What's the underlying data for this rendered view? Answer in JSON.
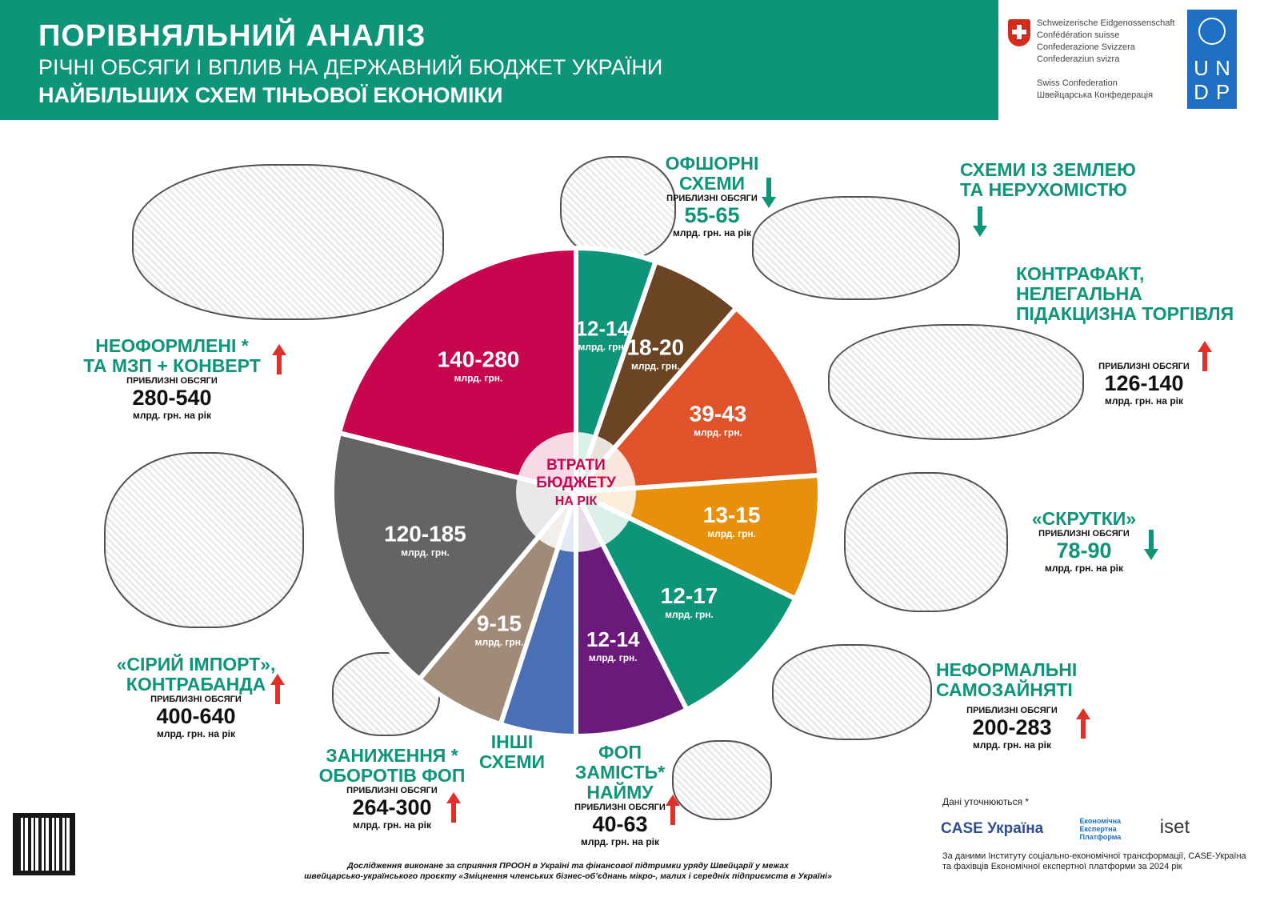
{
  "header": {
    "title": "ПОРІВНЯЛЬНИЙ АНАЛІЗ",
    "subtitle": "РІЧНІ ОБСЯГИ І ВПЛИВ НА ДЕРЖАВНИЙ БЮДЖЕТ УКРАЇНИ",
    "subtitle2": "НАЙБІЛЬШИХ СХЕМ ТІНЬОВОЇ ЕКОНОМІКИ"
  },
  "partners": {
    "swiss": [
      "Schweizerische Eidgenossenschaft",
      "Confédération suisse",
      "Confederazione Svizzera",
      "Confederaziun svizra",
      "",
      "Swiss Confederation",
      "Швейцарська Конфедерація"
    ],
    "undp": [
      "U",
      "N",
      "D",
      "P"
    ]
  },
  "chart_data": {
    "type": "pie",
    "center_label": [
      "ВТРАТИ",
      "БЮДЖЕТУ",
      "НА РІК"
    ],
    "unit": "млрд. грн.",
    "slices": [
      {
        "label": "12-14",
        "share_percent": 5.3,
        "color": "#0e9479"
      },
      {
        "label": "18-20",
        "share_percent": 6.1,
        "color": "#6b4423"
      },
      {
        "label": "39-43",
        "share_percent": 12.5,
        "color": "#e0532a"
      },
      {
        "label": "13-15",
        "share_percent": 8.3,
        "color": "#e8900c"
      },
      {
        "label": "12-17",
        "share_percent": 10.3,
        "color": "#0e9479"
      },
      {
        "label": "12-14",
        "share_percent": 7.5,
        "color": "#6a1a7a"
      },
      {
        "label": "",
        "share_percent": 5.0,
        "color": "#4a6fb5"
      },
      {
        "label": "9-15",
        "share_percent": 6.1,
        "color": "#a08a78"
      },
      {
        "label": "120-185",
        "share_percent": 17.8,
        "color": "#646464"
      },
      {
        "label": "140-280",
        "share_percent": 21.1,
        "color": "#c8064f"
      }
    ]
  },
  "schemes": {
    "offshore": {
      "title": "ОФШОРНІ СХЕМИ",
      "note": "ПРИБЛИЗНІ ОБСЯГИ",
      "value": "55-65",
      "unit": "млрд. грн. на рік",
      "trend": "down"
    },
    "land": {
      "title": "СХЕМИ ІЗ ЗЕМЛЕЮ",
      "title2": "ТА НЕРУХОМІСТЮ",
      "trend": "down"
    },
    "counterfeit": {
      "title": "КОНТРАФАКТ,",
      "title2": "НЕЛЕГАЛЬНА",
      "title3": "ПІДАКЦИЗНА ТОРГІВЛЯ",
      "note": "ПРИБЛИЗНІ ОБСЯГИ",
      "value": "126-140",
      "unit": "млрд. грн. на рік",
      "trend": "up"
    },
    "twists": {
      "title": "«СКРУТКИ»",
      "note": "ПРИБЛИЗНІ ОБСЯГИ",
      "value": "78-90",
      "unit": "млрд. грн. на рік",
      "trend": "down"
    },
    "selfemployed": {
      "title": "НЕФОРМАЛЬНІ",
      "title2": "САМОЗАЙНЯТІ",
      "note": "ПРИБЛИЗНІ ОБСЯГИ",
      "value": "200-283",
      "unit": "млрд. грн. на рік",
      "trend": "up"
    },
    "fop_hire": {
      "title": "ФОП ЗАМІСТЬ*",
      "title2": "НАЙМУ",
      "note": "ПРИБЛИЗНІ ОБСЯГИ",
      "value": "40-63",
      "unit": "млрд. грн. на рік",
      "trend": "up"
    },
    "other": {
      "title": "ІНШІ",
      "title2": "СХЕМИ"
    },
    "fop_turnover": {
      "title": "ЗАНИЖЕННЯ  *",
      "title2": "ОБОРОТІВ ФОП",
      "note": "ПРИБЛИЗНІ ОБСЯГИ",
      "value": "264-300",
      "unit": "млрд. грн. на рік",
      "trend": "up"
    },
    "grey_import": {
      "title": "«СІРИЙ ІМПОРТ»,",
      "title2": "КОНТРАБАНДА",
      "note": "ПРИБЛИЗНІ ОБСЯГИ",
      "value": "400-640",
      "unit": "млрд. грн. на рік",
      "trend": "up"
    },
    "unregistered": {
      "title": "НЕОФОРМЛЕНІ *",
      "title2": "ТА МЗП + КОНВЕРТ",
      "note": "ПРИБЛИЗНІ ОБСЯГИ",
      "value": "280-540",
      "unit": "млрд. грн. на рік",
      "trend": "up"
    }
  },
  "colors": {
    "teal": "#0e9479",
    "up": "#e0302a",
    "down": "#0e9479"
  },
  "footer": {
    "line1": "Дослідження виконане за сприяння ПРООН в Україні та фінансової підтримки уряду Швейцарії у межах",
    "line2": "швейцарсько-українського проєкту «Зміцнення членських бізнес-об’єднань мікро-, малих і середніх підприємств в Україні»"
  },
  "note": "Дані уточнюються *",
  "logos": {
    "case": "CASE Україна",
    "eep": "Економічна Експертна Платформа",
    "iset": "iset"
  },
  "source": {
    "line1": "За даними Інституту соціально-економічної трансформації, CASE-Україна",
    "line2": "та фахівців Економічної експертної платформи за 2024 рік"
  }
}
